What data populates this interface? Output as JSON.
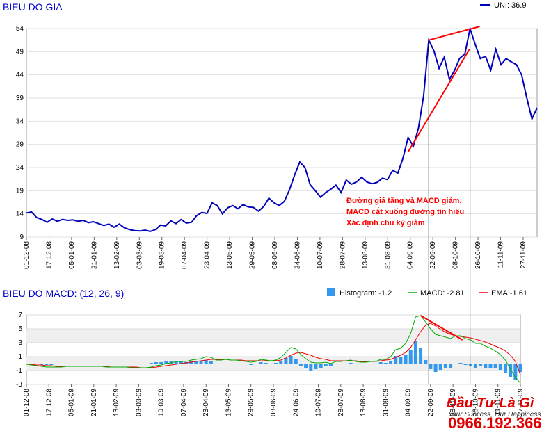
{
  "price_chart": {
    "title": "BIEU DO GIA",
    "legend": "UNI: 36.9",
    "annotation": [
      "Đường giá tăng và MACD giảm,",
      "MACD cắt xuống đường tín hiệu",
      "Xác định chu kỳ giảm"
    ]
  },
  "macd_chart": {
    "title": "BIEU DO MACD: (12, 26, 9)",
    "legend_histogram": "Histogram: -1.2",
    "legend_macd": "MACD: -2.81",
    "legend_ema": "EMA:-1.61"
  },
  "watermark": {
    "name": "Đầu Tư Là Gì",
    "slogan": "Your Success, Our Happiness",
    "phone": "0966.192.366"
  },
  "colors": {
    "price": "#0000bb",
    "macd": "#00aa00",
    "ema": "#ee0000",
    "histogram": "#3399ee",
    "title": "#0000cc",
    "trendline": "#ff0000"
  },
  "chart_data": [
    {
      "type": "line",
      "title": "BIEU DO GIA",
      "ylim": [
        9,
        54
      ],
      "yticks": [
        9,
        14,
        19,
        24,
        29,
        34,
        39,
        44,
        49,
        54
      ],
      "x_tick_labels": [
        "01-12-08",
        "17-12-08",
        "05-01-09",
        "21-01-09",
        "13-02-09",
        "03-03-09",
        "19-03-09",
        "07-04-09",
        "23-04-09",
        "13-05-09",
        "29-05-09",
        "08-06-09",
        "24-06-09",
        "10-07-09",
        "28-07-09",
        "13-08-09",
        "31-08-09",
        "04-09-09",
        "22-09-09",
        "08-10-09",
        "26-10-09",
        "11-11-09",
        "27-11-09"
      ],
      "series": [
        {
          "name": "UNI",
          "values": [
            14.2,
            14.4,
            13.2,
            12.8,
            12.2,
            12.9,
            12.4,
            12.8,
            12.6,
            12.7,
            12.4,
            12.6,
            12.1,
            12.3,
            11.9,
            11.5,
            11.8,
            11.1,
            11.8,
            11.0,
            10.6,
            10.4,
            10.3,
            10.5,
            10.2,
            10.6,
            11.6,
            11.4,
            12.5,
            11.9,
            12.8,
            12.0,
            12.2,
            13.6,
            14.3,
            14.1,
            16.4,
            15.8,
            14.0,
            15.3,
            15.8,
            15.1,
            16.0,
            15.5,
            15.4,
            14.6,
            15.6,
            17.4,
            16.4,
            15.8,
            16.7,
            19.2,
            22.4,
            25.2,
            24.0,
            20.3,
            19.0,
            17.6,
            18.6,
            19.3,
            20.2,
            18.6,
            21.3,
            20.4,
            20.9,
            21.9,
            20.9,
            20.5,
            20.8,
            21.7,
            21.4,
            23.4,
            22.8,
            26.0,
            30.5,
            28.6,
            32.5,
            39.5,
            51.5,
            49.2,
            45.4,
            47.8,
            43.0,
            45.0,
            47.6,
            48.5,
            54.0,
            50.6,
            47.5,
            48.0,
            45.0,
            49.5,
            46.2,
            47.5,
            46.8,
            46.2,
            44.0,
            39.0,
            34.5,
            36.9
          ]
        }
      ]
    },
    {
      "type": "line",
      "title": "BIEU DO MACD: (12, 26, 9)",
      "ylim": [
        -3,
        7
      ],
      "yticks": [
        -3,
        -1,
        1,
        3,
        5,
        7
      ],
      "x_tick_labels": [
        "01-12-08",
        "17-12-08",
        "05-01-09",
        "21-01-09",
        "13-02-09",
        "03-03-09",
        "19-03-09",
        "07-04-09",
        "23-04-09",
        "13-05-09",
        "29-05-09",
        "08-06-09",
        "24-06-09",
        "10-07-09",
        "28-07-09",
        "13-08-09",
        "31-08-09",
        "04-09-09",
        "22-09-09",
        "08-10-09",
        "26-10-09",
        "11-11-09",
        "27-11-09"
      ],
      "series": [
        {
          "name": "MACD",
          "values": [
            -0.1,
            -0.2,
            -0.3,
            -0.4,
            -0.5,
            -0.5,
            -0.5,
            -0.5,
            -0.4,
            -0.4,
            -0.4,
            -0.4,
            -0.4,
            -0.4,
            -0.4,
            -0.4,
            -0.5,
            -0.5,
            -0.5,
            -0.5,
            -0.5,
            -0.6,
            -0.6,
            -0.6,
            -0.6,
            -0.5,
            -0.3,
            -0.2,
            0.0,
            0.1,
            0.3,
            0.3,
            0.3,
            0.5,
            0.6,
            0.7,
            1.0,
            0.9,
            0.5,
            0.5,
            0.6,
            0.5,
            0.5,
            0.4,
            0.3,
            0.2,
            0.3,
            0.6,
            0.5,
            0.4,
            0.5,
            0.9,
            1.6,
            2.3,
            2.1,
            1.3,
            0.7,
            0.2,
            0.1,
            0.1,
            0.2,
            0.0,
            0.3,
            0.3,
            0.4,
            0.5,
            0.3,
            0.2,
            0.2,
            0.3,
            0.3,
            0.6,
            0.6,
            1.0,
            2.0,
            2.2,
            2.9,
            4.3,
            6.7,
            6.9,
            6.0,
            5.0,
            4.2,
            4.0,
            3.8,
            3.6,
            4.0,
            4.0,
            3.6,
            3.4,
            2.9,
            2.9,
            2.5,
            2.2,
            1.8,
            1.3,
            0.5,
            -0.8,
            -2.0,
            -2.81
          ]
        },
        {
          "name": "EMA",
          "values": [
            -0.1,
            -0.1,
            -0.2,
            -0.2,
            -0.3,
            -0.3,
            -0.4,
            -0.4,
            -0.4,
            -0.4,
            -0.4,
            -0.4,
            -0.4,
            -0.4,
            -0.4,
            -0.4,
            -0.4,
            -0.5,
            -0.5,
            -0.5,
            -0.5,
            -0.5,
            -0.5,
            -0.6,
            -0.6,
            -0.6,
            -0.5,
            -0.4,
            -0.3,
            -0.2,
            -0.1,
            0.0,
            0.1,
            0.2,
            0.3,
            0.4,
            0.5,
            0.6,
            0.6,
            0.6,
            0.6,
            0.5,
            0.5,
            0.5,
            0.4,
            0.4,
            0.4,
            0.4,
            0.4,
            0.4,
            0.4,
            0.5,
            0.8,
            1.2,
            1.5,
            1.6,
            1.4,
            1.2,
            0.9,
            0.7,
            0.6,
            0.4,
            0.4,
            0.4,
            0.4,
            0.4,
            0.4,
            0.3,
            0.3,
            0.3,
            0.3,
            0.4,
            0.5,
            0.6,
            0.9,
            1.2,
            1.6,
            2.3,
            3.4,
            4.6,
            5.5,
            5.8,
            5.4,
            4.9,
            4.5,
            4.2,
            4.0,
            3.9,
            3.8,
            3.7,
            3.5,
            3.3,
            3.1,
            2.8,
            2.5,
            2.2,
            1.8,
            1.2,
            0.3,
            -1.61
          ]
        }
      ]
    }
  ]
}
